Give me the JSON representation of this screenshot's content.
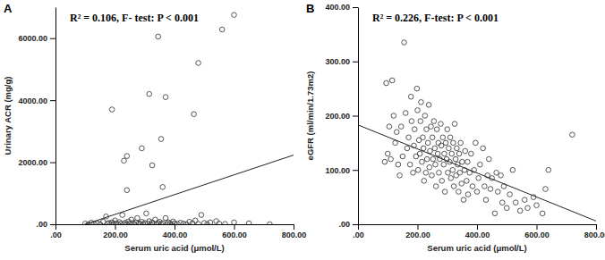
{
  "chart_data": [
    {
      "type": "scatter",
      "panel": "A",
      "annotation": "R² = 0.106, F- test: P < 0.001",
      "x_label": "Serum uric acid (μmol/L)",
      "y_label": "Urinary ACR (mg/g)",
      "marker": "circle",
      "xlim": [
        0,
        800
      ],
      "ylim": [
        0,
        7000
      ],
      "xticks": [
        {
          "value": 0,
          "label": ".00"
        },
        {
          "value": 200,
          "label": "200.00"
        },
        {
          "value": 400,
          "label": "400.00"
        },
        {
          "value": 600,
          "label": "600.00"
        },
        {
          "value": 800,
          "label": "800.00"
        }
      ],
      "yticks": [
        {
          "value": 0,
          "label": ".00"
        },
        {
          "value": 2000,
          "label": "2000.00"
        },
        {
          "value": 4000,
          "label": "4000.00"
        },
        {
          "value": 6000,
          "label": "6000.00"
        }
      ],
      "x": [
        100,
        110,
        120,
        130,
        140,
        150,
        160,
        170,
        175,
        180,
        185,
        190,
        195,
        200,
        205,
        210,
        215,
        220,
        225,
        230,
        235,
        240,
        245,
        250,
        255,
        260,
        265,
        270,
        275,
        280,
        285,
        290,
        295,
        300,
        305,
        310,
        315,
        320,
        325,
        330,
        335,
        340,
        345,
        350,
        355,
        360,
        370,
        375,
        380,
        385,
        390,
        395,
        400,
        410,
        420,
        430,
        440,
        450,
        460,
        470,
        480,
        490,
        500,
        510,
        520,
        540,
        550,
        570,
        600,
        650,
        720,
        190,
        230,
        240,
        240,
        290,
        315,
        325,
        345,
        355,
        360,
        370,
        465,
        480,
        560,
        600
      ],
      "values": [
        20,
        0,
        50,
        10,
        30,
        0,
        80,
        250,
        20,
        40,
        0,
        60,
        10,
        120,
        30,
        0,
        70,
        20,
        300,
        10,
        50,
        0,
        90,
        20,
        150,
        40,
        0,
        60,
        200,
        30,
        10,
        80,
        0,
        40,
        350,
        20,
        100,
        0,
        60,
        20,
        150,
        10,
        40,
        80,
        0,
        30,
        200,
        10,
        60,
        20,
        0,
        90,
        30,
        10,
        50,
        20,
        0,
        80,
        30,
        120,
        10,
        300,
        40,
        0,
        60,
        100,
        20,
        10,
        60,
        30,
        0,
        3700,
        2050,
        2200,
        1100,
        2450,
        4200,
        1900,
        6050,
        2750,
        1200,
        4100,
        3550,
        5200,
        6280,
        6750
      ],
      "fit": {
        "type": "line",
        "x": [
          0,
          800
        ],
        "values": [
          -320,
          2230
        ]
      }
    },
    {
      "type": "scatter",
      "panel": "B",
      "annotation": "R² = 0.226, F-test: P < 0.001",
      "x_label": "Serum uric acid (μmol/L)",
      "y_label": "eGFR (ml/min/1.73m2)",
      "marker": "circle",
      "xlim": [
        0,
        800
      ],
      "ylim": [
        0,
        400
      ],
      "xticks": [
        {
          "value": 0,
          "label": ".00"
        },
        {
          "value": 200,
          "label": "200.00"
        },
        {
          "value": 400,
          "label": "400.00"
        },
        {
          "value": 600,
          "label": "600.00"
        },
        {
          "value": 800,
          "label": "800.00"
        }
      ],
      "yticks": [
        {
          "value": 0,
          "label": ".00"
        },
        {
          "value": 100,
          "label": "100.00"
        },
        {
          "value": 200,
          "label": "200.00"
        },
        {
          "value": 300,
          "label": "300.00"
        },
        {
          "value": 400,
          "label": "400.00"
        }
      ],
      "x": [
        90,
        95,
        100,
        105,
        110,
        115,
        120,
        125,
        130,
        135,
        140,
        145,
        150,
        155,
        160,
        165,
        170,
        175,
        178,
        180,
        185,
        188,
        190,
        195,
        198,
        200,
        202,
        205,
        208,
        210,
        212,
        215,
        218,
        220,
        222,
        225,
        228,
        230,
        232,
        235,
        238,
        240,
        242,
        245,
        248,
        250,
        252,
        255,
        258,
        260,
        262,
        265,
        268,
        270,
        272,
        275,
        278,
        280,
        282,
        285,
        288,
        290,
        292,
        295,
        298,
        300,
        302,
        305,
        308,
        310,
        312,
        315,
        318,
        320,
        322,
        325,
        328,
        330,
        332,
        335,
        338,
        340,
        342,
        345,
        348,
        350,
        355,
        358,
        360,
        365,
        368,
        370,
        375,
        380,
        385,
        390,
        395,
        400,
        405,
        410,
        420,
        425,
        430,
        435,
        440,
        445,
        450,
        460,
        465,
        470,
        480,
        485,
        490,
        500,
        510,
        520,
        530,
        545,
        560,
        570,
        590,
        600,
        620,
        630,
        640,
        720
      ],
      "values": [
        115,
        260,
        130,
        180,
        120,
        265,
        200,
        150,
        170,
        110,
        90,
        180,
        125,
        335,
        205,
        140,
        160,
        110,
        235,
        190,
        95,
        145,
        175,
        125,
        250,
        210,
        100,
        155,
        130,
        190,
        225,
        115,
        160,
        140,
        80,
        200,
        95,
        175,
        120,
        150,
        220,
        105,
        135,
        180,
        90,
        160,
        120,
        190,
        140,
        110,
        70,
        175,
        130,
        150,
        95,
        120,
        185,
        145,
        80,
        160,
        110,
        130,
        60,
        150,
        120,
        175,
        95,
        140,
        115,
        160,
        85,
        130,
        100,
        150,
        70,
        185,
        120,
        90,
        140,
        110,
        60,
        130,
        95,
        150,
        75,
        115,
        45,
        100,
        135,
        80,
        115,
        55,
        95,
        130,
        70,
        100,
        150,
        60,
        85,
        110,
        140,
        70,
        45,
        90,
        120,
        65,
        85,
        20,
        95,
        60,
        90,
        40,
        70,
        30,
        55,
        100,
        40,
        25,
        45,
        30,
        50,
        35,
        20,
        65,
        100,
        165
      ],
      "fit": {
        "type": "line",
        "x": [
          0,
          800
        ],
        "values": [
          183,
          6
        ]
      }
    }
  ]
}
